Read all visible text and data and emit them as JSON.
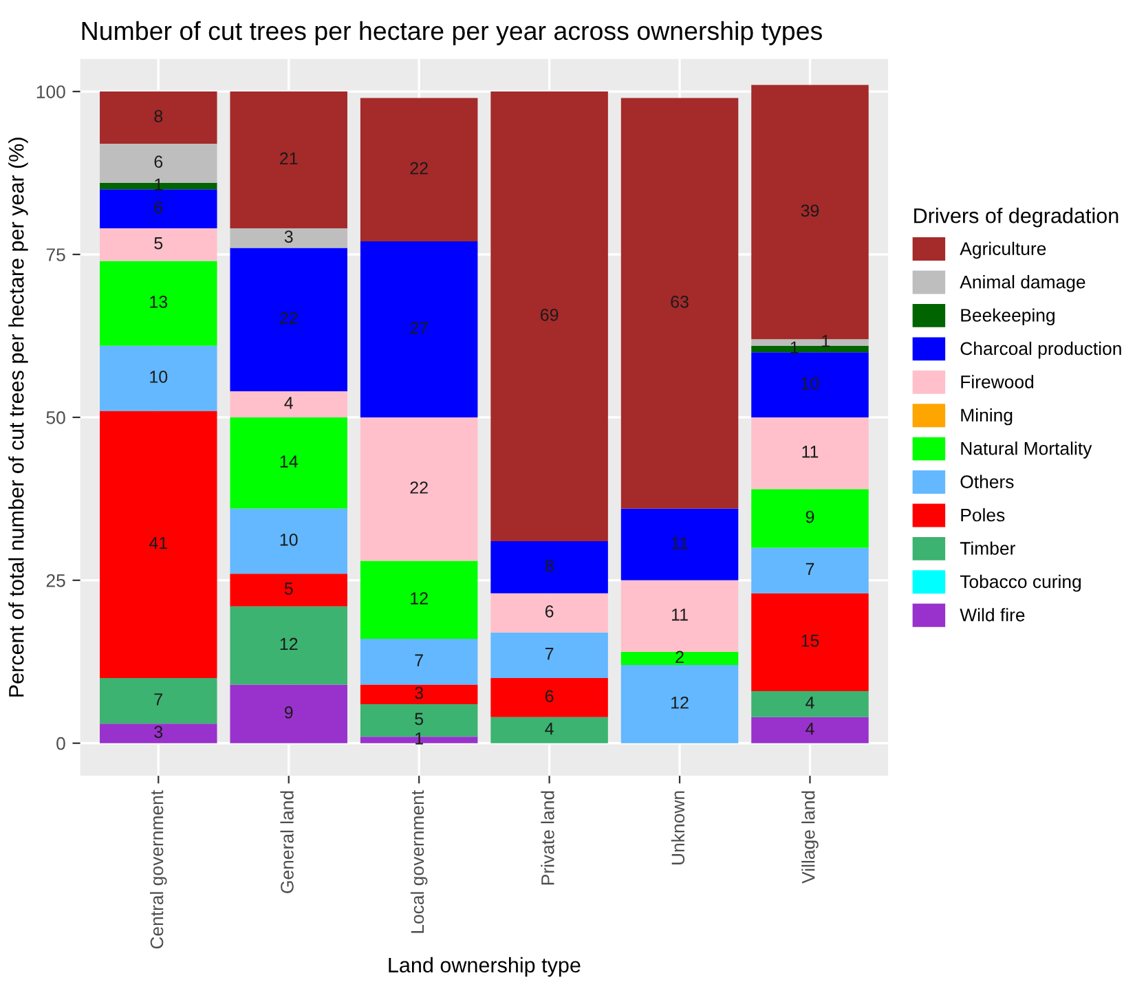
{
  "chart_data": {
    "type": "bar",
    "title": "Number of cut trees per hectare per year across ownership types",
    "xlabel": "Land ownership type",
    "ylabel": "Percent of total number of cut trees per hectare per year (%)",
    "legend_title": "Drivers of degradation",
    "categories": [
      "Central government",
      "General land",
      "Local government",
      "Private land",
      "Unknown",
      "Village land"
    ],
    "stacked": true,
    "data_labels": true,
    "grid": true,
    "legend": "right",
    "ylim": [
      -5,
      105
    ],
    "yticks": [
      0,
      25,
      50,
      75,
      100
    ],
    "series": [
      {
        "name": "Wild fire",
        "color": "#9932cc",
        "values": [
          3,
          9,
          1,
          null,
          null,
          4
        ]
      },
      {
        "name": "Tobacco curing",
        "color": "#00ffff",
        "values": [
          null,
          null,
          null,
          null,
          null,
          null
        ]
      },
      {
        "name": "Timber",
        "color": "#3cb371",
        "values": [
          7,
          12,
          5,
          4,
          null,
          4
        ]
      },
      {
        "name": "Poles",
        "color": "#ff0000",
        "values": [
          41,
          5,
          3,
          6,
          null,
          15
        ]
      },
      {
        "name": "Others",
        "color": "#63b8ff",
        "values": [
          10,
          10,
          7,
          7,
          12,
          7
        ]
      },
      {
        "name": "Natural Mortality",
        "color": "#00ff00",
        "values": [
          13,
          14,
          12,
          null,
          2,
          9
        ]
      },
      {
        "name": "Mining",
        "color": "#ffa500",
        "values": [
          null,
          null,
          null,
          null,
          null,
          null
        ]
      },
      {
        "name": "Firewood",
        "color": "#ffc0cb",
        "values": [
          5,
          4,
          22,
          6,
          11,
          11
        ]
      },
      {
        "name": "Charcoal production",
        "color": "#0000ff",
        "values": [
          6,
          22,
          27,
          8,
          11,
          10
        ]
      },
      {
        "name": "Beekeeping",
        "color": "#006400",
        "values": [
          1,
          null,
          null,
          null,
          null,
          1
        ]
      },
      {
        "name": "Animal damage",
        "color": "#bebebe",
        "values": [
          6,
          3,
          null,
          null,
          null,
          1
        ]
      },
      {
        "name": "Agriculture",
        "color": "#a52a2a",
        "values": [
          8,
          21,
          22,
          69,
          63,
          39
        ]
      }
    ]
  }
}
